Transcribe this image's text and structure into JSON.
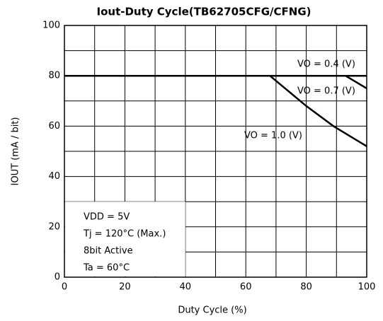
{
  "chart_data": {
    "type": "line",
    "title": "Iout-Duty Cycle(TB62705CFG/CFNG)",
    "xlabel": "Duty Cycle   (%)",
    "ylabel": "IOUT   (mA / bit)",
    "xlim": [
      0,
      100
    ],
    "xticks": [
      0,
      20,
      40,
      60,
      80,
      100
    ],
    "xminor": [
      10,
      30,
      50,
      70,
      90
    ],
    "ylim": [
      0,
      100
    ],
    "yticks": [
      0,
      20,
      40,
      60,
      80,
      100
    ],
    "yminor": [
      10,
      30,
      50,
      70,
      90
    ],
    "grid": true,
    "series": [
      {
        "name": "VO = 0.4 (V)",
        "color": "#000000",
        "x": [
          0,
          100
        ],
        "values": [
          80,
          80
        ]
      },
      {
        "name": "VO = 0.7 (V)",
        "color": "#000000",
        "x": [
          0,
          93,
          100
        ],
        "values": [
          80,
          80,
          75
        ]
      },
      {
        "name": "VO = 1.0 (V)",
        "color": "#000000",
        "x": [
          0,
          68,
          75,
          80,
          89,
          100
        ],
        "values": [
          80,
          80,
          73,
          68,
          60,
          52
        ]
      }
    ],
    "annotations": [
      "VDD = 5V",
      "Tj = 120°C (Max.)",
      "8bit Active",
      "Ta = 60°C"
    ]
  }
}
